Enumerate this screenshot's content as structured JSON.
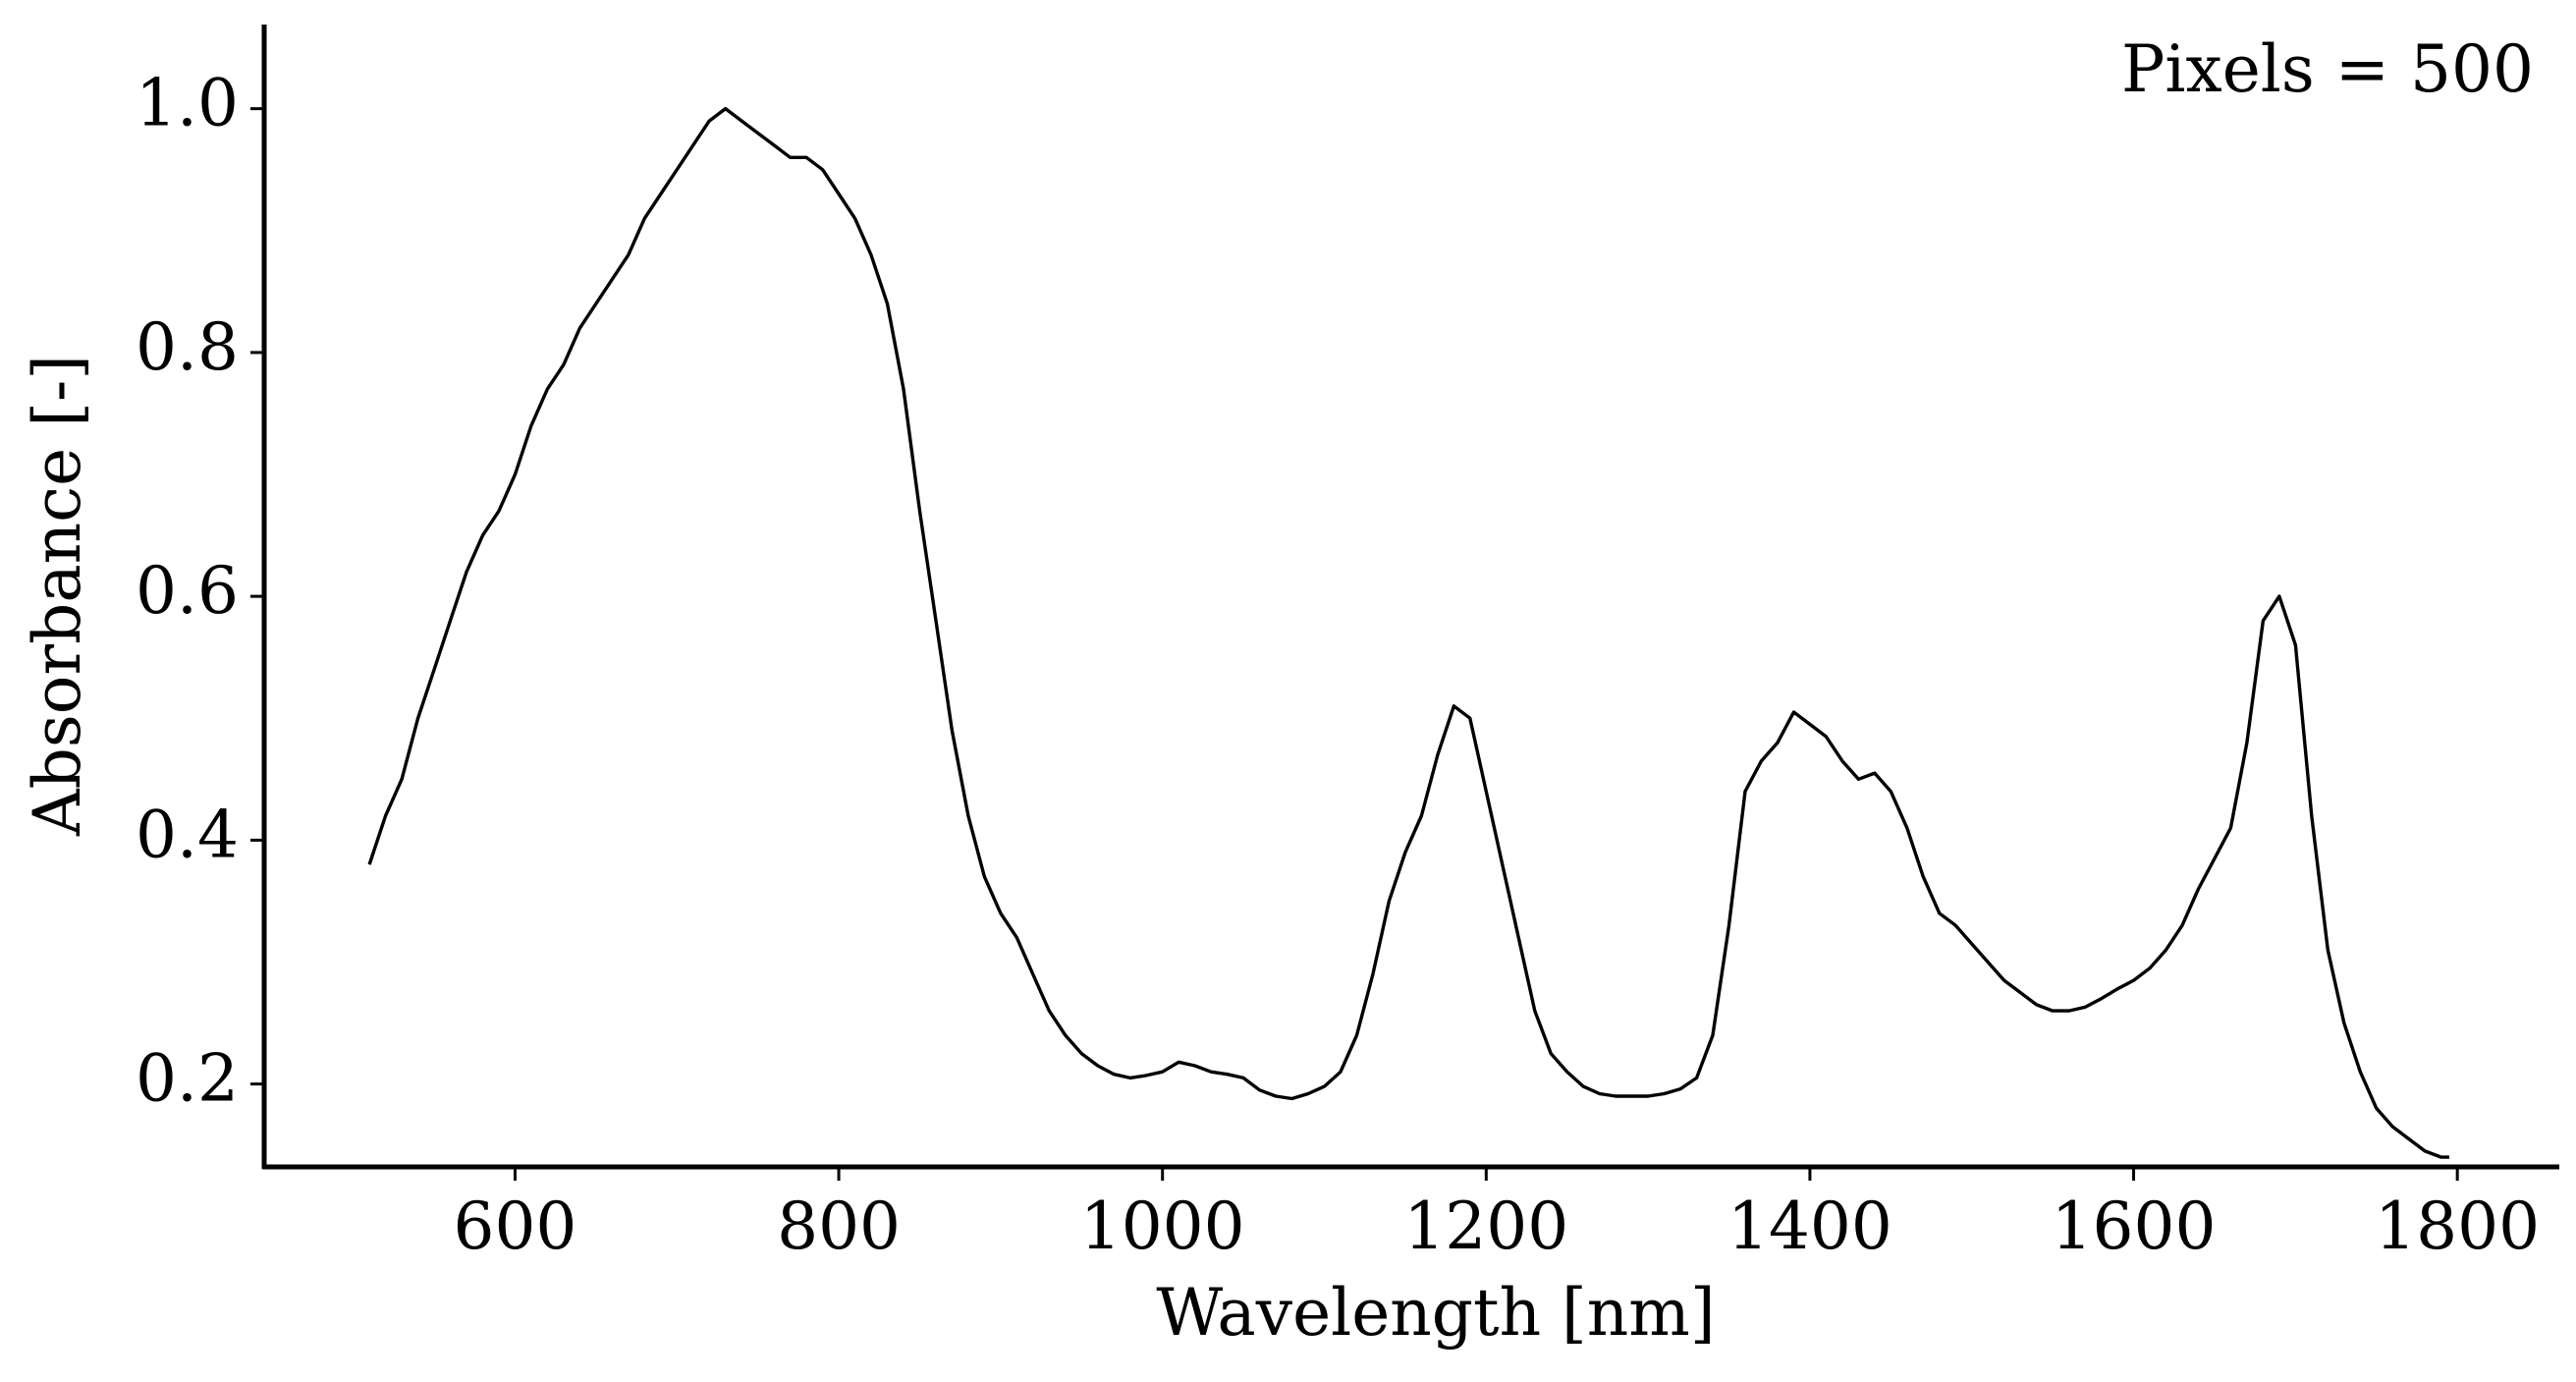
{
  "chart_data": {
    "type": "line",
    "xlabel": "Wavelength [nm]",
    "ylabel": "Absorbance [-]",
    "annotation": "Pixels = 500",
    "x": [
      510,
      520,
      530,
      540,
      550,
      560,
      570,
      580,
      590,
      600,
      610,
      620,
      630,
      640,
      650,
      660,
      670,
      680,
      690,
      700,
      710,
      720,
      730,
      740,
      750,
      760,
      770,
      780,
      790,
      800,
      810,
      820,
      830,
      840,
      850,
      860,
      870,
      880,
      890,
      900,
      910,
      920,
      930,
      940,
      950,
      960,
      970,
      980,
      990,
      1000,
      1010,
      1020,
      1030,
      1040,
      1050,
      1060,
      1070,
      1080,
      1090,
      1100,
      1110,
      1120,
      1130,
      1140,
      1150,
      1160,
      1170,
      1180,
      1190,
      1200,
      1210,
      1220,
      1230,
      1240,
      1250,
      1260,
      1270,
      1280,
      1290,
      1300,
      1310,
      1320,
      1330,
      1340,
      1350,
      1360,
      1370,
      1380,
      1390,
      1400,
      1410,
      1420,
      1430,
      1440,
      1450,
      1460,
      1470,
      1480,
      1490,
      1500,
      1510,
      1520,
      1530,
      1540,
      1550,
      1560,
      1570,
      1580,
      1590,
      1600,
      1610,
      1620,
      1630,
      1640,
      1650,
      1660,
      1670,
      1680,
      1690,
      1700,
      1710,
      1720,
      1730,
      1740,
      1750,
      1760,
      1770,
      1780,
      1790,
      1795
    ],
    "series": [
      {
        "color": "#000000",
        "values": [
          0.38,
          0.42,
          0.45,
          0.5,
          0.54,
          0.58,
          0.62,
          0.65,
          0.67,
          0.7,
          0.74,
          0.77,
          0.79,
          0.82,
          0.84,
          0.86,
          0.88,
          0.91,
          0.93,
          0.95,
          0.97,
          0.99,
          1.0,
          0.99,
          0.98,
          0.97,
          0.96,
          0.96,
          0.95,
          0.93,
          0.91,
          0.88,
          0.84,
          0.77,
          0.67,
          0.58,
          0.49,
          0.42,
          0.37,
          0.34,
          0.32,
          0.29,
          0.26,
          0.24,
          0.225,
          0.215,
          0.208,
          0.205,
          0.207,
          0.21,
          0.218,
          0.215,
          0.21,
          0.208,
          0.205,
          0.195,
          0.19,
          0.188,
          0.192,
          0.198,
          0.21,
          0.24,
          0.29,
          0.35,
          0.39,
          0.42,
          0.47,
          0.51,
          0.5,
          0.44,
          0.38,
          0.32,
          0.26,
          0.225,
          0.21,
          0.198,
          0.192,
          0.19,
          0.19,
          0.19,
          0.192,
          0.196,
          0.205,
          0.24,
          0.33,
          0.44,
          0.465,
          0.48,
          0.505,
          0.495,
          0.485,
          0.465,
          0.45,
          0.455,
          0.44,
          0.41,
          0.37,
          0.34,
          0.33,
          0.315,
          0.3,
          0.285,
          0.275,
          0.265,
          0.26,
          0.26,
          0.263,
          0.27,
          0.278,
          0.285,
          0.295,
          0.31,
          0.33,
          0.36,
          0.385,
          0.41,
          0.48,
          0.58,
          0.6,
          0.56,
          0.42,
          0.31,
          0.25,
          0.21,
          0.18,
          0.165,
          0.155,
          0.145,
          0.14,
          0.14
        ]
      }
    ],
    "xlim": [
      445,
      1863
    ],
    "ylim": [
      0.132,
      1.069
    ],
    "xticks": [
      600,
      800,
      1000,
      1200,
      1400,
      1600,
      1800
    ],
    "yticks": [
      0.2,
      0.4,
      0.6,
      0.8,
      {
        "value": 1.0,
        "label": "1.0"
      }
    ]
  }
}
